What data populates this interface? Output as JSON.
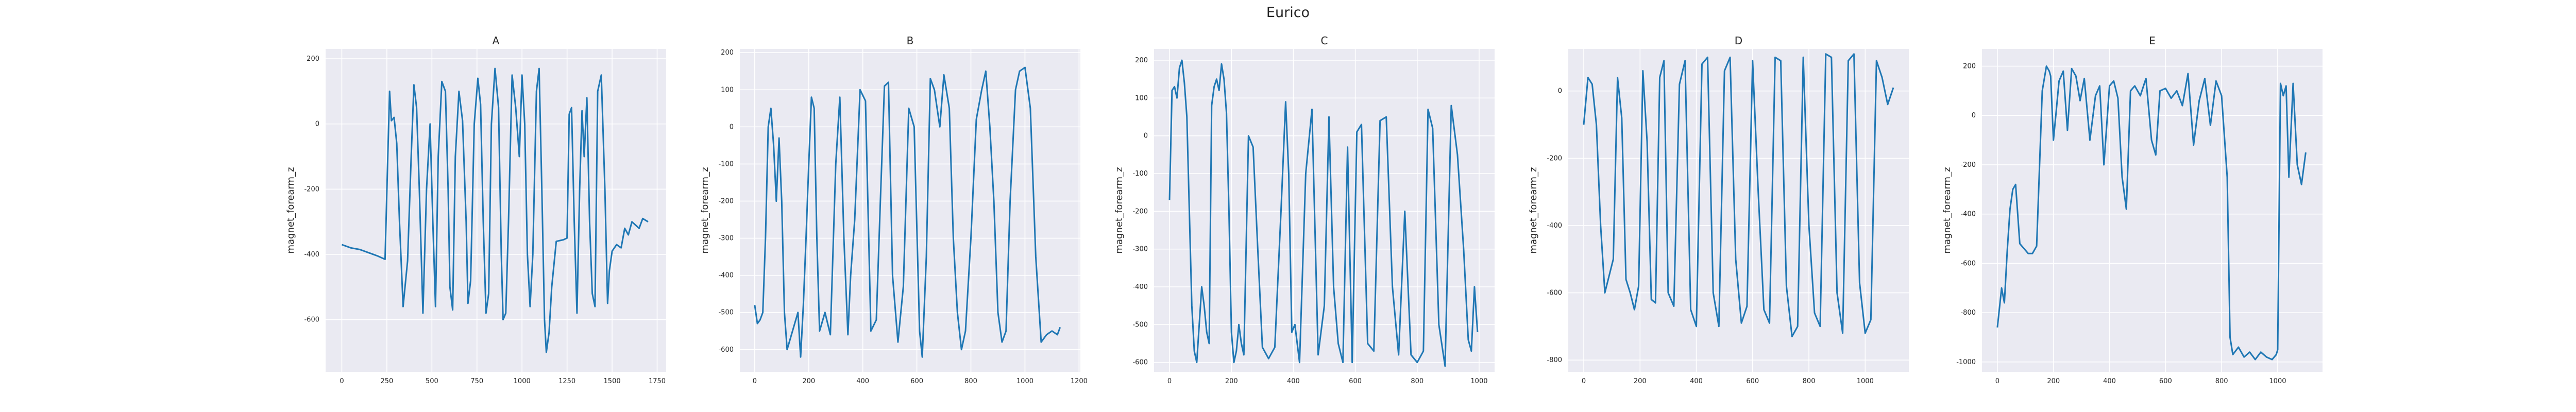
{
  "figure_title": "Eurico",
  "chart_data": [
    {
      "type": "line",
      "title": "A",
      "xlabel": "",
      "ylabel": "magnet_forearm_z",
      "xlim": [
        -90,
        1800
      ],
      "ylim": [
        -760,
        230
      ],
      "xticks": [
        0,
        250,
        500,
        750,
        1000,
        1250,
        1500,
        1750
      ],
      "yticks": [
        -600,
        -400,
        -200,
        0,
        200
      ],
      "color": "#1f77b4",
      "series": [
        {
          "x": [
            0,
            50,
            100,
            150,
            200,
            240,
            255,
            265,
            275,
            290,
            305,
            320,
            340,
            365,
            385,
            400,
            415,
            430,
            450,
            470,
            490,
            505,
            520,
            535,
            555,
            575,
            590,
            600,
            615,
            630,
            650,
            670,
            690,
            700,
            715,
            735,
            755,
            770,
            785,
            800,
            815,
            830,
            850,
            870,
            885,
            895,
            910,
            925,
            945,
            965,
            985,
            1000,
            1015,
            1030,
            1045,
            1060,
            1080,
            1095,
            1110,
            1125,
            1135,
            1150,
            1165,
            1190,
            1230,
            1250,
            1262,
            1275,
            1290,
            1305,
            1320,
            1333,
            1345,
            1360,
            1375,
            1390,
            1405,
            1420,
            1440,
            1460,
            1475,
            1485,
            1500,
            1525,
            1550,
            1570,
            1590,
            1610,
            1630,
            1650,
            1670,
            1700
          ],
          "y": [
            -370,
            -380,
            -385,
            -395,
            -405,
            -415,
            -100,
            100,
            10,
            20,
            -60,
            -300,
            -560,
            -420,
            -100,
            120,
            50,
            -200,
            -580,
            -200,
            0,
            -300,
            -560,
            -100,
            130,
            100,
            -200,
            -500,
            -570,
            -100,
            100,
            10,
            -300,
            -550,
            -480,
            0,
            140,
            60,
            -300,
            -580,
            -520,
            0,
            170,
            50,
            -400,
            -600,
            -580,
            -300,
            150,
            50,
            -100,
            150,
            0,
            -400,
            -560,
            -400,
            100,
            170,
            -200,
            -600,
            -700,
            -640,
            -500,
            -360,
            -355,
            -350,
            30,
            50,
            -300,
            -580,
            -200,
            40,
            -100,
            80,
            -300,
            -520,
            -560,
            100,
            150,
            -200,
            -550,
            -450,
            -390,
            -370,
            -380,
            -320,
            -340,
            -300,
            -310,
            -320,
            -290,
            -300
          ]
        }
      ]
    },
    {
      "type": "line",
      "title": "B",
      "xlabel": "",
      "ylabel": "magnet_forearm_z",
      "xlim": [
        -55,
        1205
      ],
      "ylim": [
        -660,
        210
      ],
      "xticks": [
        0,
        200,
        400,
        600,
        800,
        1000,
        1200
      ],
      "yticks": [
        -600,
        -500,
        -400,
        -300,
        -200,
        -100,
        0,
        100,
        200
      ],
      "color": "#1f77b4",
      "series": [
        {
          "x": [
            0,
            10,
            20,
            30,
            40,
            50,
            60,
            70,
            80,
            90,
            100,
            110,
            120,
            140,
            160,
            170,
            180,
            190,
            200,
            210,
            220,
            230,
            240,
            260,
            280,
            300,
            315,
            330,
            345,
            355,
            370,
            390,
            410,
            430,
            450,
            465,
            480,
            495,
            510,
            530,
            550,
            570,
            590,
            610,
            620,
            635,
            650,
            665,
            685,
            700,
            720,
            735,
            750,
            765,
            780,
            800,
            820,
            840,
            855,
            870,
            885,
            900,
            915,
            930,
            945,
            965,
            980,
            1000,
            1020,
            1040,
            1060,
            1080,
            1100,
            1120,
            1130
          ],
          "y": [
            -480,
            -530,
            -520,
            -500,
            -300,
            0,
            50,
            -50,
            -200,
            -30,
            -200,
            -500,
            -600,
            -550,
            -500,
            -620,
            -480,
            -300,
            -100,
            80,
            50,
            -300,
            -550,
            -500,
            -560,
            -100,
            80,
            -300,
            -560,
            -400,
            -250,
            100,
            70,
            -550,
            -520,
            -200,
            110,
            120,
            -400,
            -580,
            -430,
            50,
            0,
            -550,
            -620,
            -350,
            130,
            100,
            0,
            140,
            50,
            -300,
            -500,
            -600,
            -550,
            -300,
            20,
            100,
            150,
            0,
            -200,
            -500,
            -580,
            -550,
            -200,
            100,
            150,
            160,
            50,
            -350,
            -580,
            -560,
            -550,
            -560,
            -540
          ]
        }
      ]
    },
    {
      "type": "line",
      "title": "C",
      "xlabel": "",
      "ylabel": "magnet_forearm_z",
      "xlim": [
        -50,
        1050
      ],
      "ylim": [
        -625,
        230
      ],
      "xticks": [
        0,
        200,
        400,
        600,
        800,
        1000
      ],
      "yticks": [
        -600,
        -500,
        -400,
        -300,
        -200,
        -100,
        0,
        100,
        200
      ],
      "color": "#1f77b4",
      "series": [
        {
          "x": [
            0,
            8,
            16,
            24,
            32,
            40,
            48,
            56,
            64,
            72,
            80,
            88,
            96,
            104,
            112,
            120,
            128,
            136,
            144,
            152,
            160,
            168,
            176,
            184,
            192,
            200,
            208,
            216,
            224,
            232,
            240,
            255,
            270,
            285,
            300,
            320,
            340,
            360,
            375,
            385,
            395,
            405,
            420,
            440,
            460,
            480,
            500,
            515,
            530,
            545,
            560,
            575,
            590,
            605,
            620,
            640,
            660,
            680,
            700,
            720,
            740,
            760,
            780,
            800,
            820,
            835,
            850,
            870,
            890,
            910,
            930,
            950,
            965,
            975,
            985,
            995
          ],
          "y": [
            -170,
            120,
            130,
            100,
            180,
            200,
            140,
            50,
            -200,
            -450,
            -570,
            -600,
            -500,
            -400,
            -450,
            -520,
            -550,
            80,
            130,
            150,
            120,
            190,
            150,
            60,
            -200,
            -520,
            -600,
            -570,
            -500,
            -550,
            -580,
            0,
            -30,
            -300,
            -560,
            -590,
            -560,
            -200,
            90,
            -100,
            -520,
            -500,
            -600,
            -100,
            70,
            -580,
            -450,
            50,
            -400,
            -550,
            -600,
            -30,
            -600,
            10,
            30,
            -550,
            -570,
            40,
            50,
            -400,
            -580,
            -200,
            -580,
            -600,
            -570,
            70,
            20,
            -500,
            -610,
            80,
            -50,
            -300,
            -540,
            -570,
            -400,
            -520
          ]
        }
      ]
    },
    {
      "type": "line",
      "title": "D",
      "xlabel": "",
      "ylabel": "magnet_forearm_z",
      "xlim": [
        -55,
        1155
      ],
      "ylim": [
        -835,
        125
      ],
      "xticks": [
        0,
        200,
        400,
        600,
        800,
        1000
      ],
      "yticks": [
        -800,
        -600,
        -400,
        -200,
        0
      ],
      "color": "#1f77b4",
      "series": [
        {
          "x": [
            0,
            15,
            30,
            45,
            60,
            75,
            90,
            105,
            120,
            135,
            150,
            165,
            180,
            195,
            210,
            225,
            240,
            255,
            270,
            285,
            300,
            320,
            340,
            360,
            380,
            400,
            420,
            440,
            460,
            480,
            500,
            520,
            540,
            560,
            580,
            600,
            620,
            640,
            660,
            680,
            700,
            720,
            740,
            760,
            780,
            800,
            820,
            840,
            860,
            880,
            900,
            920,
            940,
            960,
            980,
            1000,
            1020,
            1040,
            1060,
            1080,
            1100
          ],
          "y": [
            -100,
            40,
            20,
            -100,
            -400,
            -600,
            -550,
            -500,
            40,
            -80,
            -560,
            -600,
            -650,
            -580,
            60,
            -150,
            -620,
            -630,
            40,
            90,
            -600,
            -640,
            20,
            90,
            -650,
            -700,
            80,
            100,
            -600,
            -700,
            60,
            100,
            -500,
            -690,
            -640,
            90,
            -300,
            -650,
            -690,
            100,
            90,
            -580,
            -730,
            -700,
            100,
            -400,
            -660,
            -700,
            110,
            100,
            -600,
            -720,
            90,
            110,
            -570,
            -720,
            -680,
            90,
            40,
            -40,
            10
          ]
        }
      ]
    },
    {
      "type": "line",
      "title": "E",
      "xlabel": "",
      "ylabel": "magnet_forearm_z",
      "xlim": [
        -55,
        1160
      ],
      "ylim": [
        -1040,
        270
      ],
      "xticks": [
        0,
        200,
        400,
        600,
        800,
        1000
      ],
      "yticks": [
        -1000,
        -800,
        -600,
        -400,
        -200,
        0,
        200
      ],
      "color": "#1f77b4",
      "series": [
        {
          "x": [
            0,
            15,
            25,
            35,
            45,
            55,
            65,
            80,
            95,
            110,
            125,
            140,
            160,
            175,
            185,
            190,
            200,
            210,
            220,
            235,
            250,
            265,
            280,
            295,
            310,
            330,
            350,
            365,
            380,
            400,
            415,
            430,
            445,
            460,
            475,
            490,
            510,
            530,
            550,
            565,
            580,
            600,
            620,
            640,
            660,
            680,
            700,
            720,
            740,
            760,
            780,
            800,
            820,
            830,
            840,
            860,
            880,
            900,
            920,
            940,
            960,
            980,
            995,
            1000,
            1010,
            1020,
            1030,
            1040,
            1055,
            1070,
            1085,
            1100
          ],
          "y": [
            -860,
            -700,
            -760,
            -550,
            -380,
            -300,
            -280,
            -520,
            -540,
            -560,
            -560,
            -530,
            100,
            200,
            180,
            160,
            -100,
            20,
            140,
            180,
            -60,
            190,
            160,
            60,
            150,
            -100,
            80,
            120,
            -200,
            120,
            140,
            70,
            -250,
            -380,
            100,
            120,
            80,
            150,
            -100,
            -160,
            100,
            110,
            70,
            100,
            40,
            170,
            -120,
            60,
            150,
            -40,
            140,
            80,
            -250,
            -900,
            -970,
            -940,
            -980,
            -960,
            -990,
            -960,
            -980,
            -990,
            -970,
            -950,
            130,
            80,
            120,
            -250,
            130,
            -200,
            -280,
            -150
          ]
        }
      ]
    }
  ]
}
